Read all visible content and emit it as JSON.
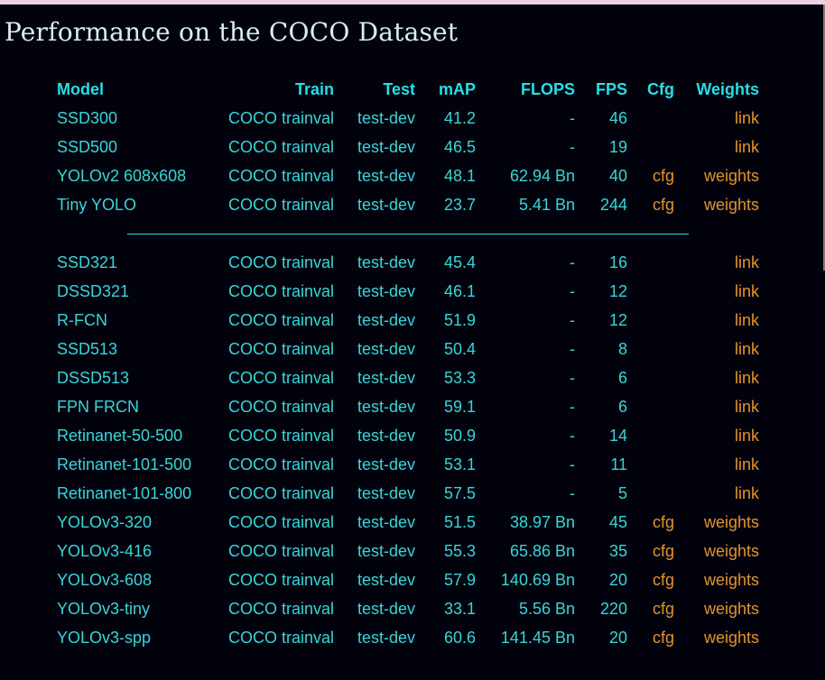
{
  "page": {
    "title": "Performance on the COCO Dataset"
  },
  "colors": {
    "background": "#02020d",
    "top_border": "#e8d4e0",
    "scrollbar_thumb": "#8e7380",
    "title_text": "#d5eff2",
    "header_text": "#25dfe7",
    "body_text": "#38d6da",
    "link_text": "#e2942d",
    "divider_line": "#2bd8e1"
  },
  "table": {
    "headers": {
      "model": "Model",
      "train": "Train",
      "test": "Test",
      "map": "mAP",
      "flops": "FLOPS",
      "fps": "FPS",
      "cfg": "Cfg",
      "weights": "Weights"
    },
    "sections": [
      {
        "rows": [
          {
            "model": "SSD300",
            "train": "COCO trainval",
            "test": "test-dev",
            "map": "41.2",
            "flops": "-",
            "fps": "46",
            "cfg": "",
            "weights": "link"
          },
          {
            "model": "SSD500",
            "train": "COCO trainval",
            "test": "test-dev",
            "map": "46.5",
            "flops": "-",
            "fps": "19",
            "cfg": "",
            "weights": "link"
          },
          {
            "model": "YOLOv2 608x608",
            "train": "COCO trainval",
            "test": "test-dev",
            "map": "48.1",
            "flops": "62.94 Bn",
            "fps": "40",
            "cfg": "cfg",
            "weights": "weights"
          },
          {
            "model": "Tiny YOLO",
            "train": "COCO trainval",
            "test": "test-dev",
            "map": "23.7",
            "flops": "5.41 Bn",
            "fps": "244",
            "cfg": "cfg",
            "weights": "weights"
          }
        ]
      },
      {
        "rows": [
          {
            "model": "SSD321",
            "train": "COCO trainval",
            "test": "test-dev",
            "map": "45.4",
            "flops": "-",
            "fps": "16",
            "cfg": "",
            "weights": "link"
          },
          {
            "model": "DSSD321",
            "train": "COCO trainval",
            "test": "test-dev",
            "map": "46.1",
            "flops": "-",
            "fps": "12",
            "cfg": "",
            "weights": "link"
          },
          {
            "model": "R-FCN",
            "train": "COCO trainval",
            "test": "test-dev",
            "map": "51.9",
            "flops": "-",
            "fps": "12",
            "cfg": "",
            "weights": "link"
          },
          {
            "model": "SSD513",
            "train": "COCO trainval",
            "test": "test-dev",
            "map": "50.4",
            "flops": "-",
            "fps": "8",
            "cfg": "",
            "weights": "link"
          },
          {
            "model": "DSSD513",
            "train": "COCO trainval",
            "test": "test-dev",
            "map": "53.3",
            "flops": "-",
            "fps": "6",
            "cfg": "",
            "weights": "link"
          },
          {
            "model": "FPN FRCN",
            "train": "COCO trainval",
            "test": "test-dev",
            "map": "59.1",
            "flops": "-",
            "fps": "6",
            "cfg": "",
            "weights": "link"
          },
          {
            "model": "Retinanet-50-500",
            "train": "COCO trainval",
            "test": "test-dev",
            "map": "50.9",
            "flops": "-",
            "fps": "14",
            "cfg": "",
            "weights": "link"
          },
          {
            "model": "Retinanet-101-500",
            "train": "COCO trainval",
            "test": "test-dev",
            "map": "53.1",
            "flops": "-",
            "fps": "11",
            "cfg": "",
            "weights": "link"
          },
          {
            "model": "Retinanet-101-800",
            "train": "COCO trainval",
            "test": "test-dev",
            "map": "57.5",
            "flops": "-",
            "fps": "5",
            "cfg": "",
            "weights": "link"
          },
          {
            "model": "YOLOv3-320",
            "train": "COCO trainval",
            "test": "test-dev",
            "map": "51.5",
            "flops": "38.97 Bn",
            "fps": "45",
            "cfg": "cfg",
            "weights": "weights"
          },
          {
            "model": "YOLOv3-416",
            "train": "COCO trainval",
            "test": "test-dev",
            "map": "55.3",
            "flops": "65.86 Bn",
            "fps": "35",
            "cfg": "cfg",
            "weights": "weights"
          },
          {
            "model": "YOLOv3-608",
            "train": "COCO trainval",
            "test": "test-dev",
            "map": "57.9",
            "flops": "140.69 Bn",
            "fps": "20",
            "cfg": "cfg",
            "weights": "weights"
          },
          {
            "model": "YOLOv3-tiny",
            "train": "COCO trainval",
            "test": "test-dev",
            "map": "33.1",
            "flops": "5.56 Bn",
            "fps": "220",
            "cfg": "cfg",
            "weights": "weights"
          },
          {
            "model": "YOLOv3-spp",
            "train": "COCO trainval",
            "test": "test-dev",
            "map": "60.6",
            "flops": "141.45 Bn",
            "fps": "20",
            "cfg": "cfg",
            "weights": "weights"
          }
        ]
      }
    ]
  }
}
